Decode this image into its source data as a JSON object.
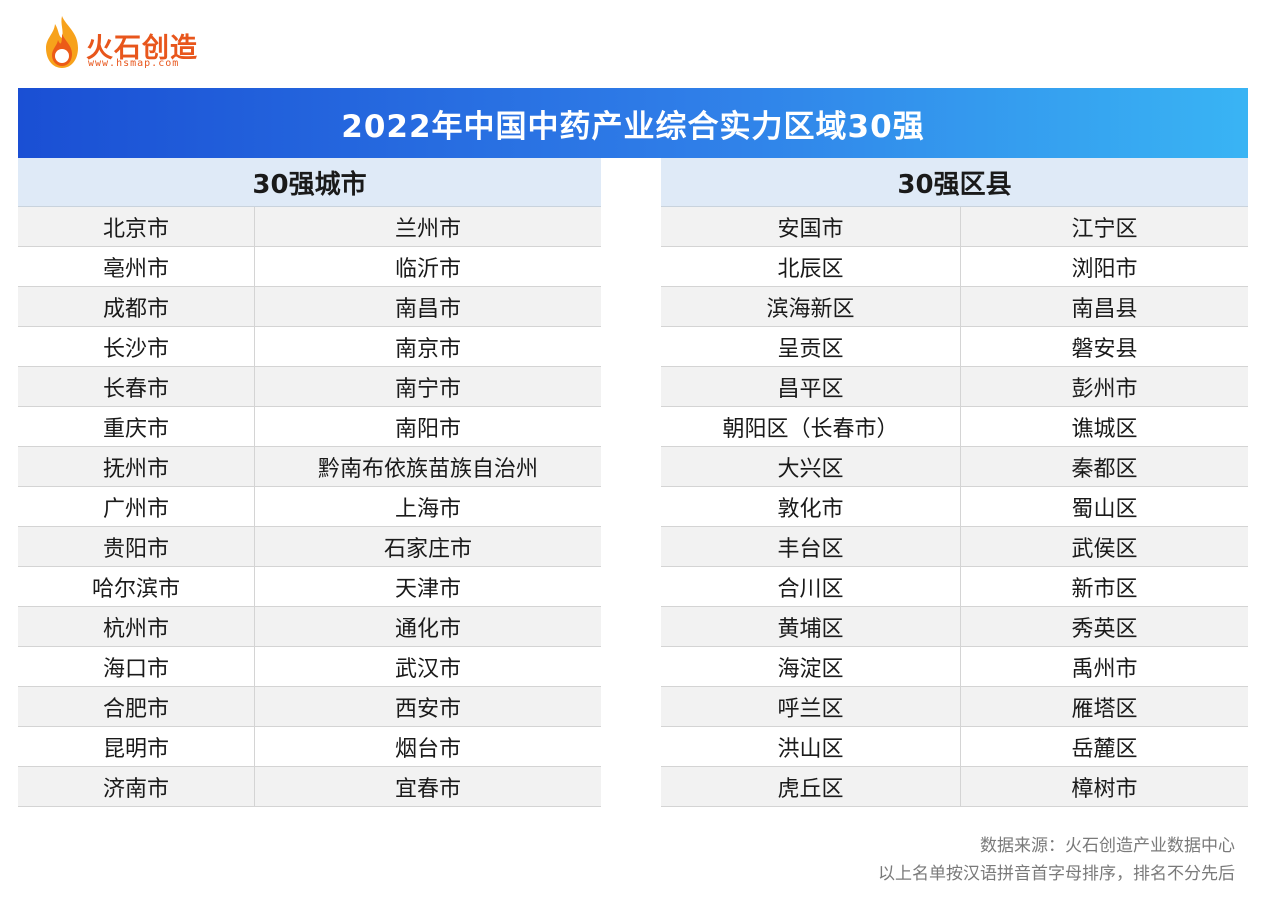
{
  "logo": {
    "name": "火石创造",
    "url": "www.hsmap.com"
  },
  "title": "2022年中国中药产业综合实力区域30强",
  "cities": {
    "header": "30强城市",
    "rows": [
      [
        "北京市",
        "兰州市"
      ],
      [
        "亳州市",
        "临沂市"
      ],
      [
        "成都市",
        "南昌市"
      ],
      [
        "长沙市",
        "南京市"
      ],
      [
        "长春市",
        "南宁市"
      ],
      [
        "重庆市",
        "南阳市"
      ],
      [
        "抚州市",
        "黔南布依族苗族自治州"
      ],
      [
        "广州市",
        "上海市"
      ],
      [
        "贵阳市",
        "石家庄市"
      ],
      [
        "哈尔滨市",
        "天津市"
      ],
      [
        "杭州市",
        "通化市"
      ],
      [
        "海口市",
        "武汉市"
      ],
      [
        "合肥市",
        "西安市"
      ],
      [
        "昆明市",
        "烟台市"
      ],
      [
        "济南市",
        "宜春市"
      ]
    ]
  },
  "counties": {
    "header": "30强区县",
    "rows": [
      [
        "安国市",
        "江宁区"
      ],
      [
        "北辰区",
        "浏阳市"
      ],
      [
        "滨海新区",
        "南昌县"
      ],
      [
        "呈贡区",
        "磐安县"
      ],
      [
        "昌平区",
        "彭州市"
      ],
      [
        "朝阳区（长春市）",
        "谯城区"
      ],
      [
        "大兴区",
        "秦都区"
      ],
      [
        "敦化市",
        "蜀山区"
      ],
      [
        "丰台区",
        "武侯区"
      ],
      [
        "合川区",
        "新市区"
      ],
      [
        "黄埔区",
        "秀英区"
      ],
      [
        "海淀区",
        "禹州市"
      ],
      [
        "呼兰区",
        "雁塔区"
      ],
      [
        "洪山区",
        "岳麓区"
      ],
      [
        "虎丘区",
        "樟树市"
      ]
    ]
  },
  "footer": {
    "source": "数据来源：火石创造产业数据中心",
    "note": "以上名单按汉语拼音首字母排序，排名不分先后"
  },
  "colors": {
    "brand": "#e8561c",
    "banner_start": "#1a4fd4",
    "banner_end": "#39b4f4",
    "header_bg": "#dfeaf7",
    "row_shade": "#f2f2f2"
  }
}
